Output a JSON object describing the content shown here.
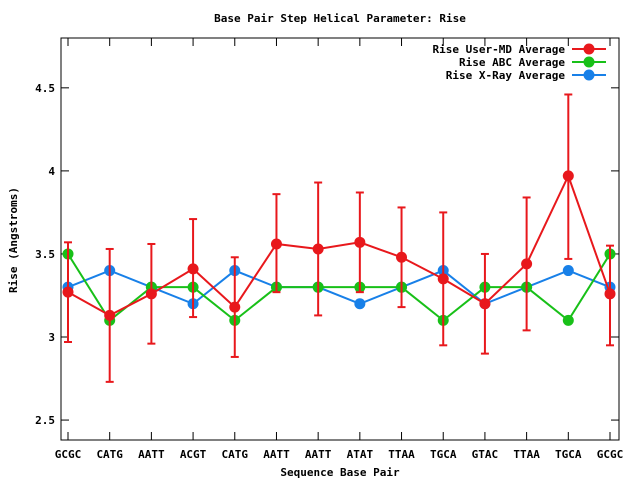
{
  "chart_data": {
    "type": "line",
    "title": "Base Pair Step Helical Parameter: Rise",
    "xlabel": "Sequence Base Pair",
    "ylabel": "Rise (Angstroms)",
    "categories": [
      "GCGC",
      "CATG",
      "AATT",
      "ACGT",
      "CATG",
      "AATT",
      "AATT",
      "ATAT",
      "TTAA",
      "TGCA",
      "GTAC",
      "TTAA",
      "TGCA",
      "GCGC"
    ],
    "yticks": [
      2.5,
      3,
      3.5,
      4,
      4.5
    ],
    "ytick_labels": [
      "2.5",
      "3",
      "3.5",
      "4",
      "4.5"
    ],
    "ylim": [
      2.38,
      4.8
    ],
    "grid": false,
    "legend_position": "top-right",
    "series": [
      {
        "name": "Rise User-MD Average",
        "color": "#e8181c",
        "values": [
          3.27,
          3.13,
          3.26,
          3.41,
          3.18,
          3.56,
          3.53,
          3.57,
          3.48,
          3.35,
          3.2,
          3.44,
          3.97,
          3.26
        ],
        "error_low": [
          2.97,
          2.73,
          2.96,
          3.12,
          2.88,
          3.27,
          3.13,
          3.27,
          3.18,
          2.95,
          2.9,
          3.04,
          3.47,
          2.95
        ],
        "error_high": [
          3.57,
          3.53,
          3.56,
          3.71,
          3.48,
          3.86,
          3.93,
          3.87,
          3.78,
          3.75,
          3.5,
          3.84,
          4.46,
          3.55
        ]
      },
      {
        "name": "Rise ABC Average",
        "color": "#18c018",
        "values": [
          3.5,
          3.1,
          3.3,
          3.3,
          3.1,
          3.3,
          3.3,
          3.3,
          3.3,
          3.1,
          3.3,
          3.3,
          3.1,
          3.5
        ]
      },
      {
        "name": "Rise X-Ray Average",
        "color": "#1880e8",
        "values": [
          3.3,
          3.4,
          3.3,
          3.2,
          3.4,
          3.3,
          3.3,
          3.2,
          3.3,
          3.4,
          3.2,
          3.3,
          3.4,
          3.3
        ]
      }
    ]
  }
}
